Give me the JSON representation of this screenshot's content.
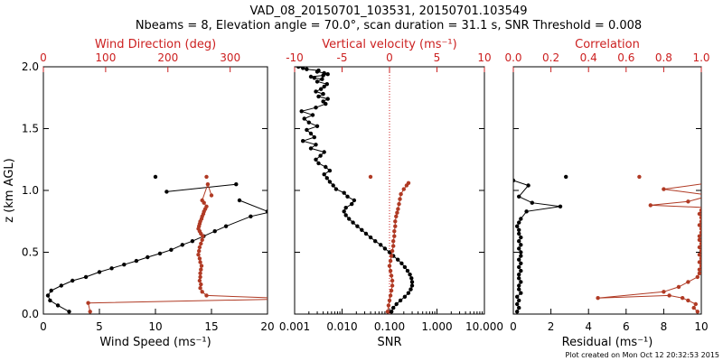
{
  "figure": {
    "title_line1": "VAD_08_20150701_103531, 20150701.103549",
    "title_line2": "Nbeams = 8, Elevation angle = 70.0°, scan duration = 31.1 s, SNR Threshold = 0.008",
    "footer": "Plot created on Mon Oct 12 20:32:53 2015",
    "colors": {
      "black_series": "#000000",
      "red_series": "#b03a24",
      "red_axis": "#cc2020",
      "axes": "#000000"
    }
  },
  "chart_data": [
    {
      "type": "line",
      "id": "wind",
      "ylabel": "z (km AGL)",
      "ylim": [
        0,
        2.0
      ],
      "yticks": [
        "0.0",
        "0.5",
        "1.0",
        "1.5",
        "2.0"
      ],
      "ytick_values": [
        0,
        0.5,
        1.0,
        1.5,
        2.0
      ],
      "bottom_axis": {
        "label": "Wind Speed (ms⁻¹)",
        "range": [
          0,
          20
        ],
        "ticks": [
          "0",
          "5",
          "10",
          "15",
          "20"
        ],
        "tick_values": [
          0,
          5,
          10,
          15,
          20
        ]
      },
      "top_axis": {
        "label": "Wind Direction (deg)",
        "range": [
          0,
          360
        ],
        "ticks": [
          "0",
          "100",
          "200",
          "300"
        ],
        "tick_values": [
          0,
          100,
          200,
          300
        ]
      },
      "series": [
        {
          "axis": "bottom",
          "color": "black",
          "x": [
            2.3,
            1.3,
            0.6,
            0.4,
            0.7,
            1.6,
            2.6,
            3.8,
            5.0,
            6.1,
            7.2,
            8.3,
            9.3,
            10.4,
            11.4,
            12.4,
            13.3,
            14.3,
            15.3,
            16.3,
            18.5,
            21.0,
            23.0,
            20.0,
            17.5
          ],
          "y": [
            0.02,
            0.07,
            0.11,
            0.15,
            0.19,
            0.23,
            0.27,
            0.3,
            0.34,
            0.37,
            0.4,
            0.43,
            0.46,
            0.49,
            0.52,
            0.56,
            0.59,
            0.63,
            0.67,
            0.71,
            0.79,
            0.84,
            0.86,
            0.83,
            0.92
          ]
        },
        {
          "axis": "bottom",
          "color": "black",
          "x": [
            11.0,
            17.2
          ],
          "y": [
            0.99,
            1.05
          ]
        },
        {
          "axis": "bottom",
          "color": "black",
          "x": [
            10.0
          ],
          "y": [
            1.11
          ]
        },
        {
          "axis": "top",
          "color": "red",
          "x": [
            75,
            72,
            370,
            375,
            262,
            255,
            252,
            253,
            251,
            252,
            252,
            253,
            254,
            252,
            251,
            249,
            250,
            251,
            253,
            255,
            256,
            253,
            251,
            249,
            250,
            251,
            252,
            254,
            255,
            257,
            258,
            260,
            262,
            258,
            255,
            264,
            270
          ],
          "y": [
            0.02,
            0.09,
            0.12,
            0.13,
            0.15,
            0.18,
            0.21,
            0.24,
            0.27,
            0.3,
            0.33,
            0.36,
            0.39,
            0.42,
            0.45,
            0.48,
            0.51,
            0.54,
            0.57,
            0.6,
            0.63,
            0.65,
            0.67,
            0.69,
            0.71,
            0.73,
            0.75,
            0.77,
            0.79,
            0.81,
            0.83,
            0.85,
            0.87,
            0.9,
            0.92,
            1.05,
            0.96
          ]
        },
        {
          "axis": "top",
          "color": "red",
          "x": [
            262
          ],
          "y": [
            1.11
          ]
        }
      ]
    },
    {
      "type": "line",
      "id": "snr",
      "bottom_axis": {
        "label": "SNR",
        "range": [
          0.001,
          10
        ],
        "log": true,
        "ticks": [
          "0.001",
          "0.010",
          "0.100",
          "1.000",
          "10.000"
        ],
        "tick_values": [
          0.001,
          0.01,
          0.1,
          1.0,
          10.0
        ]
      },
      "top_axis": {
        "label": "Vertical velocity (ms⁻¹)",
        "range": [
          -10,
          10
        ],
        "ticks": [
          "-10",
          "-5",
          "0",
          "5",
          "10"
        ],
        "tick_values": [
          -10,
          -5,
          0,
          5,
          10
        ]
      },
      "reference_line": {
        "axis": "top",
        "value": 0,
        "style": "dotted"
      },
      "series": [
        {
          "axis": "bottom",
          "color": "black",
          "x": [
            0.11,
            0.12,
            0.14,
            0.17,
            0.21,
            0.25,
            0.28,
            0.3,
            0.3,
            0.29,
            0.27,
            0.24,
            0.21,
            0.18,
            0.15,
            0.12,
            0.1,
            0.08,
            0.065,
            0.05,
            0.04,
            0.032,
            0.026,
            0.021,
            0.017,
            0.014,
            0.012,
            0.011,
            0.012,
            0.016,
            0.018,
            0.013,
            0.011,
            0.0075,
            0.0065,
            0.0055,
            0.0048,
            0.0042,
            0.0055,
            0.0045,
            0.0032,
            0.0028,
            0.0035,
            0.0042,
            0.0022,
            0.0028,
            0.0015,
            0.0026,
            0.0022,
            0.0018,
            0.003,
            0.002,
            0.0016,
            0.0024,
            0.0014,
            0.0028,
            0.0045,
            0.004,
            0.005,
            0.0032,
            0.004,
            0.0028,
            0.0036,
            0.0042,
            0.0048,
            0.003,
            0.0038,
            0.0026,
            0.0022,
            0.004,
            0.005,
            0.0042,
            0.003,
            0.0032,
            0.0018,
            0.0015,
            0.0012
          ],
          "y": [
            0.02,
            0.05,
            0.08,
            0.11,
            0.14,
            0.17,
            0.2,
            0.23,
            0.26,
            0.29,
            0.32,
            0.35,
            0.38,
            0.41,
            0.44,
            0.47,
            0.5,
            0.53,
            0.56,
            0.59,
            0.62,
            0.65,
            0.68,
            0.71,
            0.74,
            0.77,
            0.8,
            0.83,
            0.86,
            0.89,
            0.92,
            0.95,
            0.98,
            1.01,
            1.04,
            1.07,
            1.1,
            1.13,
            1.16,
            1.19,
            1.22,
            1.25,
            1.28,
            1.31,
            1.34,
            1.37,
            1.4,
            1.43,
            1.46,
            1.49,
            1.52,
            1.55,
            1.58,
            1.61,
            1.64,
            1.67,
            1.7,
            1.72,
            1.74,
            1.76,
            1.78,
            1.8,
            1.82,
            1.84,
            1.86,
            1.88,
            1.9,
            1.91,
            1.92,
            1.93,
            1.94,
            1.95,
            1.96,
            1.97,
            1.98,
            1.99,
            2.0
          ]
        },
        {
          "axis": "top",
          "color": "red",
          "x": [
            -0.2,
            -0.1,
            0.0,
            0.1,
            0.2,
            0.3,
            0.3,
            0.2,
            0.1,
            0.0,
            0.1,
            0.2,
            0.3,
            0.4,
            0.4,
            0.5,
            0.5,
            0.6,
            0.6,
            0.7,
            0.8,
            0.9,
            1.0,
            1.1,
            1.2,
            1.5,
            1.8,
            2.0
          ],
          "y": [
            0.02,
            0.07,
            0.11,
            0.15,
            0.19,
            0.23,
            0.27,
            0.31,
            0.35,
            0.39,
            0.43,
            0.47,
            0.51,
            0.55,
            0.59,
            0.63,
            0.67,
            0.71,
            0.75,
            0.79,
            0.82,
            0.85,
            0.89,
            0.93,
            0.97,
            1.01,
            1.04,
            1.06
          ]
        },
        {
          "axis": "top",
          "color": "red",
          "x": [
            -2.0
          ],
          "y": [
            1.11
          ]
        }
      ]
    },
    {
      "type": "line",
      "id": "residual",
      "bottom_axis": {
        "label": "Residual (ms⁻¹)",
        "range": [
          0,
          10
        ],
        "ticks": [
          "0",
          "2",
          "4",
          "6",
          "8",
          "10"
        ],
        "tick_values": [
          0,
          2,
          4,
          6,
          8,
          10
        ]
      },
      "top_axis": {
        "label": "Correlation",
        "range": [
          0,
          1.0
        ],
        "ticks": [
          "0.0",
          "0.2",
          "0.4",
          "0.6",
          "0.8",
          "1.0"
        ],
        "tick_values": [
          0,
          0.2,
          0.4,
          0.6,
          0.8,
          1.0
        ]
      },
      "series": [
        {
          "axis": "bottom",
          "color": "black",
          "x": [
            0.2,
            0.3,
            0.2,
            0.3,
            0.2,
            0.4,
            0.3,
            0.3,
            0.4,
            0.3,
            0.3,
            0.4,
            0.3,
            0.4,
            0.3,
            0.4,
            0.4,
            0.3,
            0.4,
            0.3,
            0.4,
            0.3,
            0.3,
            0.2,
            0.3,
            0.4,
            0.7,
            2.5,
            1.0,
            0.3,
            0.8,
            0.0
          ],
          "y": [
            0.02,
            0.05,
            0.08,
            0.11,
            0.14,
            0.17,
            0.2,
            0.23,
            0.26,
            0.29,
            0.32,
            0.35,
            0.38,
            0.41,
            0.44,
            0.47,
            0.5,
            0.53,
            0.56,
            0.59,
            0.62,
            0.65,
            0.68,
            0.71,
            0.74,
            0.77,
            0.83,
            0.87,
            0.9,
            0.95,
            1.04,
            1.08
          ]
        },
        {
          "axis": "bottom",
          "color": "black",
          "x": [
            2.8
          ],
          "y": [
            1.11
          ]
        },
        {
          "axis": "top",
          "color": "red",
          "x": [
            0.98,
            0.96,
            0.97,
            0.93,
            0.9,
            0.83,
            0.45,
            0.8,
            0.88,
            0.93,
            0.98,
            0.99,
            0.99,
            1.0,
            0.99,
            1.0,
            0.99,
            1.0,
            0.99,
            1.0,
            0.99,
            0.99,
            1.0,
            1.0,
            0.99,
            1.0,
            1.0,
            0.99,
            1.0,
            1.05,
            0.73,
            0.93,
            1.05,
            0.8,
            1.04
          ],
          "y": [
            0.02,
            0.05,
            0.08,
            0.11,
            0.13,
            0.15,
            0.13,
            0.18,
            0.22,
            0.26,
            0.3,
            0.33,
            0.36,
            0.39,
            0.42,
            0.45,
            0.48,
            0.51,
            0.54,
            0.57,
            0.6,
            0.63,
            0.66,
            0.69,
            0.72,
            0.75,
            0.78,
            0.81,
            0.84,
            0.86,
            0.88,
            0.91,
            0.96,
            1.01,
            1.06
          ]
        },
        {
          "axis": "top",
          "color": "red",
          "x": [
            0.67
          ],
          "y": [
            1.11
          ]
        }
      ]
    }
  ]
}
